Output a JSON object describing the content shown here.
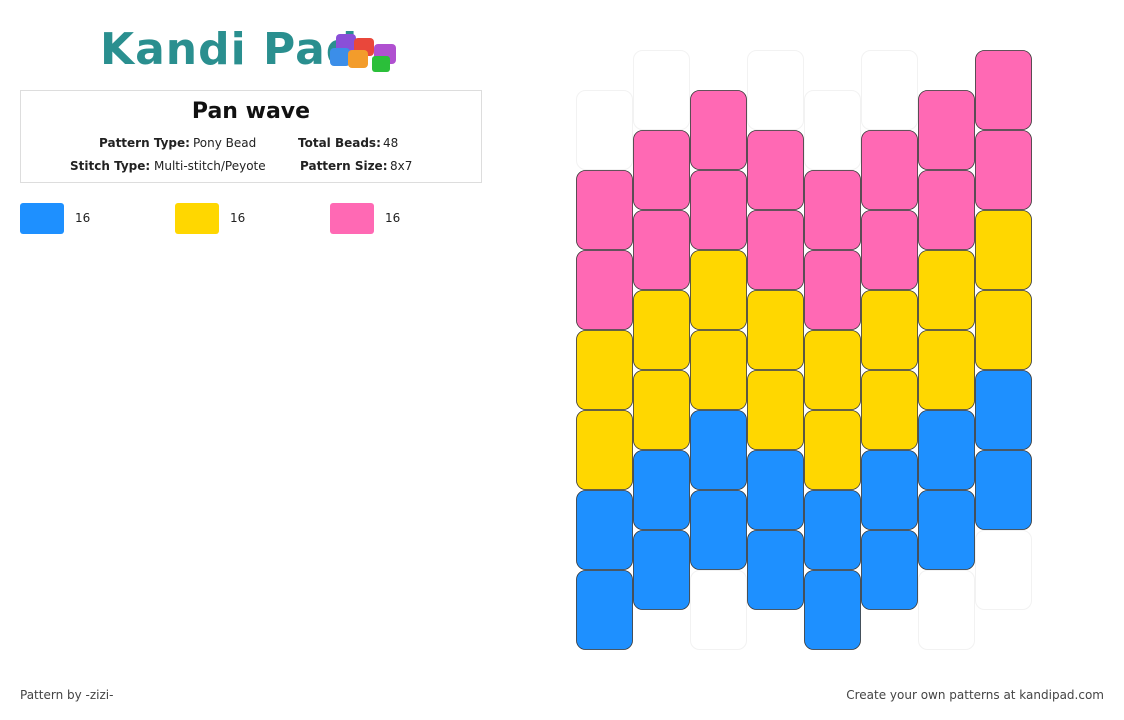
{
  "logo": "Kandi Pad",
  "header": {
    "title": "Pan wave",
    "fields": [
      {
        "label": "Pattern Type:",
        "value": "Pony Bead"
      },
      {
        "label": "Total Beads:",
        "value": "48"
      },
      {
        "label": "Stitch Type:",
        "value": "Multi-stitch/Peyote"
      },
      {
        "label": "Pattern Size:",
        "value": "8x7"
      }
    ]
  },
  "legend": [
    {
      "color": "#1e90ff",
      "count": 16
    },
    {
      "color": "#ffd700",
      "count": 16
    },
    {
      "color": "#ff69b4",
      "count": 16
    }
  ],
  "pattern": {
    "empty_color": "#ffffff",
    "columns": [
      [
        null,
        2,
        2,
        1,
        1,
        0,
        0
      ],
      [
        null,
        2,
        2,
        1,
        1,
        0,
        0
      ],
      [
        2,
        2,
        1,
        1,
        0,
        0,
        null
      ],
      [
        null,
        2,
        2,
        1,
        1,
        0,
        0
      ],
      [
        null,
        2,
        2,
        1,
        1,
        0,
        0
      ],
      [
        null,
        2,
        2,
        1,
        1,
        0,
        0
      ],
      [
        2,
        2,
        1,
        1,
        0,
        0,
        null
      ],
      [
        2,
        2,
        1,
        1,
        0,
        0,
        null
      ]
    ]
  },
  "footer": {
    "left": "Pattern by -zizi-",
    "right": "Create your own patterns at kandipad.com"
  }
}
